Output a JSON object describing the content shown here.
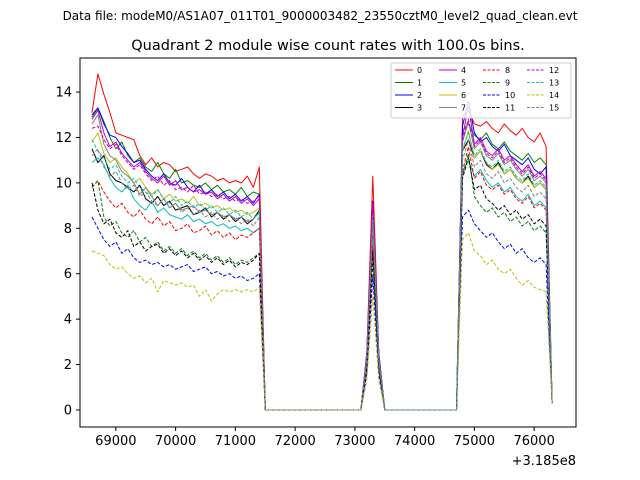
{
  "figure": {
    "suptitle": "Data file: modeM0/AS1A07_011T01_9000003482_23550cztM0_level2_quad_clean.evt",
    "title": "Quadrant 2 module wise count rates with 100.0s bins."
  },
  "chart_data": {
    "type": "line",
    "title": "Quadrant 2 module wise count rates with 100.0s bins.",
    "xlabel": "",
    "ylabel": "",
    "x_offset_label": "+3.185e8",
    "xlim": [
      68400,
      76700
    ],
    "ylim": [
      -0.75,
      15.5
    ],
    "x_ticks": [
      69000,
      70000,
      71000,
      72000,
      73000,
      74000,
      75000,
      76000
    ],
    "y_ticks": [
      0,
      2,
      4,
      6,
      8,
      10,
      12,
      14
    ],
    "grid": false,
    "legend": {
      "placement": "top-right",
      "columns": 4
    },
    "segments": [
      {
        "x_start": 68600,
        "x_end": 71400,
        "step": 100
      },
      {
        "x_start": 73200,
        "x_end": 73400,
        "step": 100
      },
      {
        "x_start": 74800,
        "x_end": 76200,
        "step": 100
      }
    ],
    "zero_gaps": [
      [
        71500,
        73100
      ],
      [
        73500,
        74700
      ]
    ],
    "drop_points": [
      71500,
      76300
    ],
    "series": [
      {
        "name": "0",
        "color": "#ff0000",
        "dashed": false,
        "values": [
          [
            13.1,
            14.8,
            13.9,
            13.1,
            12.2,
            12.1,
            12.0,
            11.9,
            11.2,
            10.8,
            11.1,
            10.7,
            10.9,
            10.8,
            10.5,
            10.6,
            10.7,
            10.4,
            10.2,
            10.4,
            10.3,
            10.1,
            10.2,
            10.0,
            10.1,
            10.0,
            10.3,
            9.8,
            10.7
          ],
          [
            2.5,
            10.3,
            2.5
          ],
          [
            12.9,
            13.2,
            12.6,
            12.5,
            12.7,
            12.4,
            12.2,
            12.6,
            12.3,
            12.1,
            12.4,
            12.0,
            11.8,
            12.2,
            11.6
          ]
        ],
        "end_value": 0.3
      },
      {
        "name": "1",
        "color": "#008000",
        "dashed": false,
        "values": [
          [
            12.9,
            13.3,
            12.7,
            12.0,
            11.5,
            11.8,
            11.2,
            10.9,
            11.1,
            10.7,
            10.5,
            10.9,
            10.4,
            10.2,
            10.6,
            10.0,
            10.1,
            9.9,
            9.8,
            10.0,
            9.7,
            9.9,
            9.6,
            9.7,
            9.5,
            9.8,
            9.4,
            9.6,
            9.5
          ],
          [
            2.4,
            9.0,
            2.4
          ],
          [
            12.3,
            12.6,
            12.1,
            11.9,
            12.2,
            11.7,
            11.5,
            11.8,
            11.4,
            11.2,
            11.0,
            11.3,
            10.9,
            11.1,
            10.8
          ]
        ],
        "end_value": 0.3
      },
      {
        "name": "2",
        "color": "#0000ff",
        "dashed": false,
        "values": [
          [
            13.0,
            13.3,
            12.6,
            12.1,
            12.0,
            11.6,
            11.3,
            10.9,
            11.0,
            10.6,
            10.3,
            10.1,
            10.4,
            10.0,
            9.9,
            10.2,
            9.8,
            9.6,
            9.9,
            9.5,
            9.7,
            9.4,
            9.6,
            9.3,
            9.5,
            9.2,
            9.4,
            9.1,
            9.5
          ],
          [
            2.5,
            9.2,
            2.5
          ],
          [
            12.5,
            13.6,
            12.2,
            11.8,
            12.0,
            11.6,
            11.4,
            11.7,
            11.2,
            11.0,
            10.8,
            11.1,
            10.6,
            10.4,
            10.7
          ]
        ],
        "end_value": 0.3
      },
      {
        "name": "3",
        "color": "#000000",
        "dashed": false,
        "values": [
          [
            11.5,
            10.9,
            11.2,
            10.4,
            10.1,
            10.0,
            9.8,
            9.6,
            9.9,
            9.3,
            9.1,
            9.4,
            9.0,
            9.2,
            8.8,
            8.9,
            9.0,
            8.6,
            8.7,
            8.9,
            8.5,
            8.7,
            8.4,
            8.6,
            8.3,
            8.5,
            8.2,
            8.4,
            8.8
          ],
          [
            2.2,
            8.1,
            2.2
          ],
          [
            11.4,
            11.9,
            11.1,
            11.4,
            10.8,
            10.6,
            10.9,
            10.4,
            10.6,
            10.2,
            10.0,
            10.3,
            9.8,
            10.0,
            9.7
          ]
        ],
        "end_value": 0.3
      },
      {
        "name": "4",
        "color": "#c000c0",
        "dashed": false,
        "values": [
          [
            12.8,
            13.2,
            12.2,
            11.6,
            11.8,
            11.3,
            11.0,
            10.7,
            10.9,
            10.5,
            10.2,
            10.0,
            10.3,
            9.9,
            10.1,
            9.7,
            9.8,
            9.6,
            9.7,
            9.5,
            9.6,
            9.3,
            9.5,
            9.2,
            9.4,
            9.1,
            9.3,
            9.0,
            9.3
          ],
          [
            2.4,
            9.1,
            2.4
          ],
          [
            12.0,
            13.4,
            11.7,
            12.0,
            11.4,
            11.2,
            11.5,
            11.0,
            11.2,
            10.8,
            10.5,
            10.8,
            10.3,
            10.5,
            10.2
          ]
        ],
        "end_value": 0.3
      },
      {
        "name": "5",
        "color": "#00bfbf",
        "dashed": false,
        "values": [
          [
            10.9,
            11.1,
            10.8,
            10.2,
            9.8,
            9.6,
            9.9,
            9.3,
            9.0,
            8.8,
            9.2,
            8.7,
            8.9,
            8.6,
            8.5,
            8.4,
            8.6,
            8.3,
            8.4,
            8.2,
            8.3,
            8.1,
            8.2,
            8.0,
            8.1,
            7.9,
            8.0,
            7.8,
            8.0
          ],
          [
            2.0,
            7.5,
            2.0
          ],
          [
            10.5,
            11.0,
            10.3,
            10.6,
            10.1,
            9.8,
            10.0,
            9.6,
            9.8,
            9.4,
            9.2,
            9.5,
            9.0,
            9.2,
            8.9
          ]
        ],
        "end_value": 0.3
      },
      {
        "name": "6",
        "color": "#bfbf00",
        "dashed": false,
        "values": [
          [
            11.8,
            12.2,
            11.3,
            10.9,
            11.1,
            10.7,
            10.4,
            10.0,
            10.2,
            9.8,
            9.5,
            9.7,
            9.3,
            9.5,
            9.2,
            9.3,
            9.1,
            9.4,
            9.0,
            9.1,
            8.9,
            9.0,
            8.8,
            8.9,
            8.7,
            8.8,
            8.6,
            8.7,
            8.9
          ],
          [
            2.3,
            8.6,
            2.3
          ],
          [
            11.4,
            12.3,
            11.1,
            11.4,
            10.9,
            10.6,
            10.8,
            10.4,
            10.6,
            10.2,
            10.0,
            10.2,
            9.8,
            10.0,
            9.7
          ]
        ],
        "end_value": 0.3
      },
      {
        "name": "7",
        "color": "#808080",
        "dashed": false,
        "values": [
          [
            12.6,
            13.0,
            11.7,
            11.2,
            11.0,
            10.5,
            10.3,
            10.0,
            9.5,
            9.8,
            9.4,
            9.0,
            9.3,
            8.9,
            9.1,
            8.8,
            8.9,
            9.0,
            8.7,
            8.8,
            8.6,
            8.7,
            8.5,
            8.6,
            8.4,
            8.5,
            8.3,
            8.4,
            8.7
          ],
          [
            2.3,
            8.3,
            2.3
          ],
          [
            11.8,
            12.7,
            11.5,
            11.8,
            11.2,
            11.0,
            11.3,
            10.8,
            11.0,
            10.6,
            10.3,
            10.6,
            10.1,
            10.3,
            10.0
          ]
        ],
        "end_value": 0.3
      },
      {
        "name": "8",
        "color": "#ff0000",
        "dashed": true,
        "values": [
          [
            9.8,
            10.1,
            9.6,
            9.2,
            8.9,
            9.1,
            8.7,
            8.5,
            8.8,
            8.4,
            8.2,
            8.5,
            8.1,
            8.3,
            7.9,
            8.0,
            8.2,
            7.8,
            7.9,
            8.1,
            7.7,
            7.9,
            7.6,
            7.8,
            7.5,
            7.7,
            7.6,
            7.8,
            8.0
          ],
          [
            1.9,
            7.2,
            1.9
          ],
          [
            10.5,
            11.6,
            10.2,
            10.5,
            9.9,
            9.7,
            9.9,
            9.5,
            9.7,
            9.3,
            9.1,
            9.4,
            8.9,
            9.1,
            8.8
          ]
        ],
        "end_value": 0.3
      },
      {
        "name": "9",
        "color": "#008000",
        "dashed": true,
        "values": [
          [
            9.8,
            10.1,
            8.5,
            8.1,
            8.3,
            7.8,
            7.6,
            7.9,
            7.4,
            7.6,
            7.2,
            7.4,
            7.0,
            7.2,
            6.9,
            7.1,
            6.8,
            7.0,
            6.7,
            6.9,
            6.6,
            6.8,
            6.5,
            6.7,
            6.4,
            6.6,
            6.5,
            6.7,
            6.9
          ],
          [
            1.8,
            6.5,
            1.8
          ],
          [
            10.3,
            11.3,
            9.4,
            9.0,
            8.7,
            8.9,
            8.5,
            8.7,
            8.3,
            8.5,
            8.1,
            8.3,
            7.9,
            8.1,
            7.8
          ]
        ],
        "end_value": 0.3
      },
      {
        "name": "10",
        "color": "#0000ff",
        "dashed": true,
        "values": [
          [
            8.5,
            8.0,
            7.5,
            7.2,
            7.4,
            6.9,
            7.1,
            6.7,
            6.5,
            6.6,
            6.4,
            6.5,
            6.3,
            6.4,
            6.2,
            6.3,
            6.4,
            6.1,
            6.2,
            6.3,
            6.0,
            6.1,
            5.9,
            6.0,
            5.8,
            5.9,
            5.7,
            5.8,
            6.0
          ],
          [
            1.6,
            5.9,
            1.6
          ],
          [
            8.5,
            8.8,
            8.2,
            7.9,
            7.6,
            7.8,
            7.4,
            7.1,
            7.3,
            6.9,
            7.1,
            6.7,
            6.5,
            6.7,
            6.4
          ]
        ],
        "end_value": 0.3
      },
      {
        "name": "11",
        "color": "#000000",
        "dashed": true,
        "values": [
          [
            10.0,
            8.8,
            8.2,
            8.4,
            7.8,
            7.6,
            7.9,
            7.2,
            7.4,
            7.0,
            7.2,
            7.3,
            6.9,
            7.1,
            6.8,
            7.0,
            6.7,
            6.9,
            6.6,
            6.8,
            6.5,
            6.7,
            6.4,
            6.6,
            6.3,
            6.5,
            6.4,
            6.6,
            6.9
          ],
          [
            1.9,
            7.0,
            1.9
          ],
          [
            10.2,
            11.1,
            9.7,
            9.9,
            9.3,
            9.1,
            8.8,
            9.0,
            8.6,
            8.8,
            8.4,
            8.6,
            8.2,
            8.4,
            8.1
          ]
        ],
        "end_value": 0.3
      },
      {
        "name": "12",
        "color": "#c000c0",
        "dashed": true,
        "values": [
          [
            12.4,
            12.5,
            11.9,
            11.5,
            11.7,
            11.2,
            10.9,
            10.6,
            10.8,
            10.4,
            10.1,
            10.3,
            9.9,
            10.1,
            9.7,
            9.8,
            9.6,
            9.9,
            9.5,
            9.6,
            9.4,
            9.5,
            9.3,
            9.4,
            9.2,
            9.3,
            9.1,
            9.2,
            9.4
          ],
          [
            2.4,
            9.0,
            2.4
          ],
          [
            11.9,
            12.8,
            11.6,
            11.9,
            11.3,
            11.1,
            11.4,
            10.9,
            11.1,
            10.7,
            10.4,
            10.7,
            10.2,
            10.4,
            10.1
          ]
        ],
        "end_value": 0.3
      },
      {
        "name": "13",
        "color": "#00bfbf",
        "dashed": true,
        "values": [
          [
            11.9,
            11.4,
            11.1,
            10.6,
            10.8,
            10.3,
            10.0,
            10.2,
            9.8,
            9.6,
            9.4,
            9.7,
            9.3,
            9.1,
            9.4,
            9.0,
            9.2,
            8.9,
            9.1,
            8.8,
            9.0,
            8.7,
            8.9,
            8.6,
            8.8,
            8.5,
            8.7,
            8.4,
            8.7
          ],
          [
            2.2,
            8.4,
            2.2
          ],
          [
            11.5,
            12.2,
            11.2,
            11.5,
            10.9,
            10.7,
            11.0,
            10.5,
            10.7,
            10.3,
            10.1,
            10.4,
            9.9,
            10.1,
            9.8
          ]
        ],
        "end_value": 0.3
      },
      {
        "name": "14",
        "color": "#bfbf00",
        "dashed": true,
        "values": [
          [
            7.0,
            6.9,
            6.8,
            6.4,
            6.2,
            6.3,
            6.0,
            5.8,
            5.9,
            5.6,
            5.8,
            5.2,
            5.7,
            5.6,
            5.5,
            5.6,
            5.4,
            5.5,
            5.0,
            5.3,
            4.8,
            5.1,
            5.3,
            5.2,
            5.3,
            5.2,
            5.3,
            5.2,
            5.4
          ],
          [
            1.3,
            5.0,
            1.3
          ],
          [
            7.5,
            7.8,
            7.0,
            6.8,
            6.4,
            6.6,
            6.2,
            6.0,
            6.2,
            5.8,
            5.5,
            5.7,
            5.4,
            5.3,
            5.2
          ]
        ],
        "end_value": 0.3
      },
      {
        "name": "15",
        "color": "#808080",
        "dashed": true,
        "values": [
          [
            11.2,
            11.5,
            10.7,
            10.3,
            10.5,
            10.0,
            9.7,
            9.9,
            9.4,
            9.6,
            9.2,
            9.0,
            9.3,
            8.9,
            9.1,
            8.7,
            8.9,
            8.6,
            8.8,
            8.5,
            8.7,
            8.4,
            8.6,
            8.3,
            8.5,
            8.2,
            8.4,
            8.1,
            8.5
          ],
          [
            2.1,
            8.2,
            2.1
          ],
          [
            11.0,
            11.9,
            10.7,
            11.0,
            10.4,
            10.2,
            10.5,
            10.0,
            10.2,
            9.8,
            9.6,
            9.9,
            9.4,
            9.6,
            9.3
          ]
        ],
        "end_value": 0.3
      }
    ]
  }
}
